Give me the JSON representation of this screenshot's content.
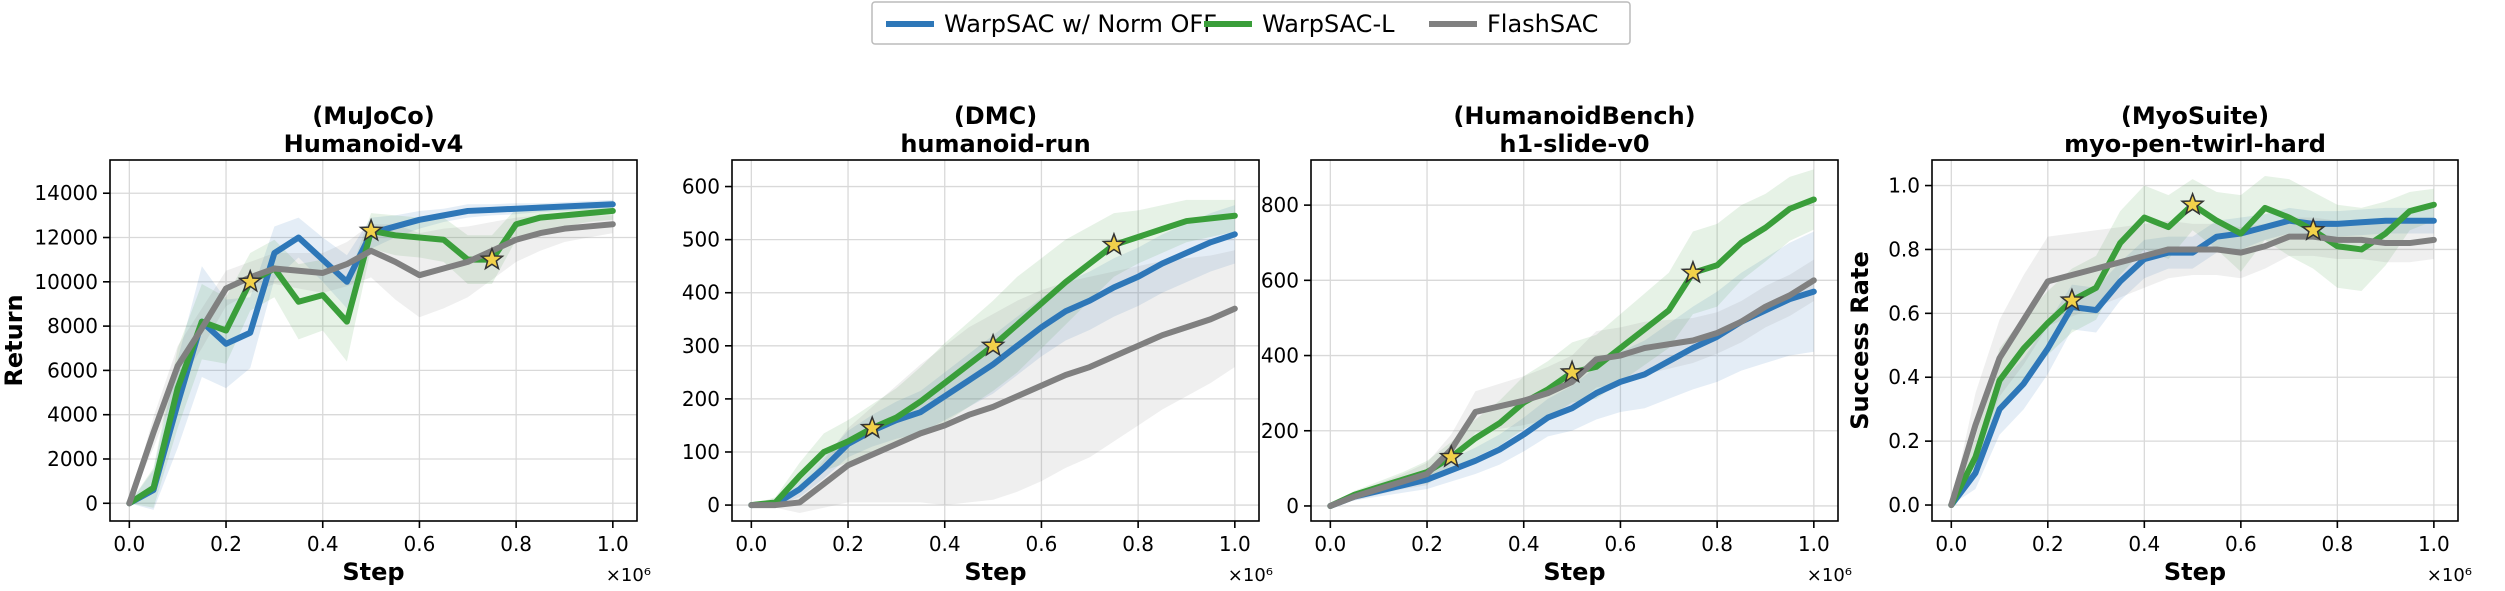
{
  "figure": {
    "series_styles": [
      {
        "name": "WarpSAC w/ Norm OFF",
        "color": "#2e77b8"
      },
      {
        "name": "WarpSAC-L",
        "color": "#3a9e3a"
      },
      {
        "name": "FlashSAC",
        "color": "#808080"
      }
    ],
    "legend_position": "top-center",
    "star_marker_color": "#f2d14a"
  },
  "chart_data": [
    {
      "type": "line",
      "title": "(MuJoCo)",
      "subtitle": "Humanoid-v4",
      "xlabel": "Step",
      "ylabel": "Return",
      "x_multiplier_label": "×10⁶",
      "xlim": [
        -0.04,
        1.05
      ],
      "ylim": [
        -800,
        15500
      ],
      "xticks": [
        0.0,
        0.2,
        0.4,
        0.6,
        0.8,
        1.0
      ],
      "xtick_labels": [
        "0.0",
        "0.2",
        "0.4",
        "0.6",
        "0.8",
        "1.0"
      ],
      "yticks": [
        0,
        2000,
        4000,
        6000,
        8000,
        10000,
        12000,
        14000
      ],
      "ytick_labels": [
        "0",
        "2000",
        "4000",
        "6000",
        "8000",
        "10000",
        "12000",
        "14000"
      ],
      "grid": true,
      "series": [
        {
          "name": "WarpSAC w/ Norm OFF",
          "x": [
            0,
            0.05,
            0.1,
            0.15,
            0.2,
            0.25,
            0.3,
            0.35,
            0.4,
            0.45,
            0.5,
            0.55,
            0.6,
            0.65,
            0.7,
            0.75,
            0.8,
            0.85,
            0.9,
            0.95,
            1.0
          ],
          "y": [
            0,
            600,
            4500,
            8200,
            7200,
            7700,
            11300,
            12000,
            11000,
            10000,
            12200,
            12500,
            12800,
            13000,
            13200,
            13250,
            13300,
            13350,
            13400,
            13450,
            13500
          ],
          "band": [
            0,
            900,
            2000,
            2500,
            2000,
            1600,
            1200,
            900,
            1000,
            1200,
            700,
            500,
            400,
            300,
            300,
            250,
            250,
            200,
            200,
            200,
            200
          ]
        },
        {
          "name": "WarpSAC-L",
          "x": [
            0,
            0.05,
            0.1,
            0.15,
            0.2,
            0.25,
            0.3,
            0.35,
            0.4,
            0.45,
            0.5,
            0.55,
            0.6,
            0.65,
            0.7,
            0.75,
            0.8,
            0.85,
            0.9,
            0.95,
            1.0
          ],
          "y": [
            0,
            700,
            5200,
            8200,
            7800,
            10000,
            10600,
            9100,
            9400,
            8200,
            12300,
            12100,
            12000,
            11900,
            11000,
            11000,
            12600,
            12900,
            13000,
            13100,
            13200
          ],
          "band": [
            0,
            900,
            1800,
            1700,
            1500,
            1300,
            1300,
            1700,
            1600,
            1800,
            800,
            900,
            900,
            1000,
            1100,
            1100,
            700,
            600,
            500,
            400,
            400
          ],
          "stars": [
            0.25,
            0.5,
            0.75
          ]
        },
        {
          "name": "FlashSAC",
          "x": [
            0,
            0.05,
            0.1,
            0.15,
            0.2,
            0.25,
            0.3,
            0.35,
            0.4,
            0.45,
            0.5,
            0.55,
            0.6,
            0.65,
            0.7,
            0.75,
            0.8,
            0.85,
            0.9,
            0.95,
            1.0
          ],
          "y": [
            0,
            3200,
            6200,
            7900,
            9700,
            10200,
            10600,
            10500,
            10400,
            10800,
            11400,
            10900,
            10300,
            10600,
            10900,
            11400,
            11900,
            12200,
            12400,
            12500,
            12600
          ],
          "band": [
            0,
            700,
            900,
            900,
            800,
            700,
            700,
            800,
            900,
            1000,
            1200,
            1700,
            1900,
            1800,
            1600,
            1300,
            1000,
            800,
            600,
            500,
            400
          ]
        }
      ]
    },
    {
      "type": "line",
      "title": "(DMC)",
      "subtitle": "humanoid-run",
      "xlabel": "Step",
      "ylabel": "",
      "x_multiplier_label": "×10⁶",
      "xlim": [
        -0.04,
        1.05
      ],
      "ylim": [
        -30,
        650
      ],
      "xticks": [
        0.0,
        0.2,
        0.4,
        0.6,
        0.8,
        1.0
      ],
      "xtick_labels": [
        "0.0",
        "0.2",
        "0.4",
        "0.6",
        "0.8",
        "1.0"
      ],
      "yticks": [
        0,
        100,
        200,
        300,
        400,
        500,
        600
      ],
      "ytick_labels": [
        "0",
        "100",
        "200",
        "300",
        "400",
        "500",
        "600"
      ],
      "grid": true,
      "series": [
        {
          "name": "WarpSAC w/ Norm OFF",
          "x": [
            0,
            0.05,
            0.1,
            0.15,
            0.2,
            0.25,
            0.3,
            0.35,
            0.4,
            0.45,
            0.5,
            0.55,
            0.6,
            0.65,
            0.7,
            0.75,
            0.8,
            0.85,
            0.9,
            0.95,
            1.0
          ],
          "y": [
            0,
            2,
            30,
            70,
            115,
            140,
            160,
            175,
            205,
            235,
            265,
            300,
            335,
            365,
            385,
            410,
            430,
            455,
            475,
            495,
            510
          ],
          "band": [
            0,
            5,
            15,
            20,
            25,
            30,
            35,
            40,
            45,
            50,
            55,
            55,
            55,
            55,
            55,
            55,
            55,
            55,
            55,
            55,
            55
          ]
        },
        {
          "name": "WarpSAC-L",
          "x": [
            0,
            0.05,
            0.1,
            0.15,
            0.2,
            0.25,
            0.3,
            0.35,
            0.4,
            0.45,
            0.5,
            0.55,
            0.6,
            0.65,
            0.7,
            0.75,
            0.8,
            0.85,
            0.9,
            0.95,
            1.0
          ],
          "y": [
            0,
            5,
            55,
            100,
            120,
            145,
            165,
            195,
            230,
            265,
            300,
            340,
            380,
            420,
            455,
            490,
            505,
            520,
            535,
            540,
            545
          ],
          "band": [
            0,
            10,
            25,
            35,
            40,
            45,
            55,
            65,
            75,
            80,
            85,
            90,
            85,
            80,
            70,
            60,
            50,
            45,
            40,
            35,
            30
          ],
          "stars": [
            0.25,
            0.5,
            0.75
          ]
        },
        {
          "name": "FlashSAC",
          "x": [
            0,
            0.05,
            0.1,
            0.15,
            0.2,
            0.25,
            0.3,
            0.35,
            0.4,
            0.45,
            0.5,
            0.55,
            0.6,
            0.65,
            0.7,
            0.75,
            0.8,
            0.85,
            0.9,
            0.95,
            1.0
          ],
          "y": [
            0,
            0,
            5,
            40,
            75,
            95,
            115,
            135,
            150,
            170,
            185,
            205,
            225,
            245,
            260,
            280,
            300,
            320,
            335,
            350,
            370
          ],
          "band": [
            0,
            5,
            20,
            45,
            70,
            90,
            110,
            130,
            150,
            165,
            175,
            180,
            180,
            175,
            170,
            160,
            150,
            140,
            130,
            120,
            110
          ]
        }
      ]
    },
    {
      "type": "line",
      "title": "(HumanoidBench)",
      "subtitle": "h1-slide-v0",
      "xlabel": "Step",
      "ylabel": "",
      "x_multiplier_label": "×10⁶",
      "xlim": [
        -0.04,
        1.05
      ],
      "ylim": [
        -40,
        920
      ],
      "xticks": [
        0.0,
        0.2,
        0.4,
        0.6,
        0.8,
        1.0
      ],
      "xtick_labels": [
        "0.0",
        "0.2",
        "0.4",
        "0.6",
        "0.8",
        "1.0"
      ],
      "yticks": [
        0,
        200,
        400,
        600,
        800
      ],
      "ytick_labels": [
        "0",
        "200",
        "400",
        "600",
        "800"
      ],
      "grid": true,
      "series": [
        {
          "name": "WarpSAC w/ Norm OFF",
          "x": [
            0,
            0.05,
            0.1,
            0.15,
            0.2,
            0.25,
            0.3,
            0.35,
            0.4,
            0.45,
            0.5,
            0.55,
            0.6,
            0.65,
            0.7,
            0.75,
            0.8,
            0.85,
            0.9,
            0.95,
            1.0
          ],
          "y": [
            0,
            25,
            40,
            55,
            70,
            95,
            120,
            150,
            190,
            235,
            260,
            300,
            330,
            350,
            385,
            420,
            450,
            490,
            520,
            550,
            570
          ],
          "band": [
            0,
            10,
            15,
            20,
            25,
            30,
            35,
            40,
            45,
            50,
            60,
            70,
            80,
            90,
            100,
            110,
            120,
            130,
            140,
            150,
            160
          ]
        },
        {
          "name": "WarpSAC-L",
          "x": [
            0,
            0.05,
            0.1,
            0.15,
            0.2,
            0.25,
            0.3,
            0.35,
            0.4,
            0.45,
            0.5,
            0.55,
            0.6,
            0.65,
            0.7,
            0.75,
            0.8,
            0.85,
            0.9,
            0.95,
            1.0
          ],
          "y": [
            0,
            30,
            50,
            70,
            90,
            130,
            180,
            220,
            275,
            310,
            355,
            370,
            420,
            470,
            520,
            620,
            640,
            700,
            740,
            790,
            815
          ],
          "band": [
            0,
            10,
            15,
            20,
            30,
            40,
            50,
            60,
            70,
            75,
            80,
            85,
            90,
            95,
            100,
            110,
            110,
            100,
            90,
            85,
            80
          ],
          "stars": [
            0.25,
            0.5,
            0.75
          ]
        },
        {
          "name": "FlashSAC",
          "x": [
            0,
            0.05,
            0.1,
            0.15,
            0.2,
            0.25,
            0.3,
            0.35,
            0.4,
            0.45,
            0.5,
            0.55,
            0.6,
            0.65,
            0.7,
            0.75,
            0.8,
            0.85,
            0.9,
            0.95,
            1.0
          ],
          "y": [
            0,
            25,
            45,
            65,
            85,
            150,
            250,
            265,
            280,
            300,
            330,
            390,
            400,
            420,
            430,
            440,
            460,
            490,
            530,
            560,
            600
          ],
          "band": [
            0,
            10,
            15,
            20,
            30,
            40,
            55,
            60,
            65,
            70,
            70,
            75,
            75,
            70,
            65,
            60,
            55,
            55,
            55,
            55,
            55
          ]
        }
      ]
    },
    {
      "type": "line",
      "title": "(MyoSuite)",
      "subtitle": "myo-pen-twirl-hard",
      "xlabel": "Step",
      "ylabel": "Success Rate",
      "x_multiplier_label": "×10⁶",
      "xlim": [
        -0.04,
        1.05
      ],
      "ylim": [
        -0.05,
        1.08
      ],
      "xticks": [
        0.0,
        0.2,
        0.4,
        0.6,
        0.8,
        1.0
      ],
      "xtick_labels": [
        "0.0",
        "0.2",
        "0.4",
        "0.6",
        "0.8",
        "1.0"
      ],
      "yticks": [
        0.0,
        0.2,
        0.4,
        0.6,
        0.8,
        1.0
      ],
      "ytick_labels": [
        "0.0",
        "0.2",
        "0.4",
        "0.6",
        "0.8",
        "1.0"
      ],
      "grid": true,
      "series": [
        {
          "name": "WarpSAC w/ Norm OFF",
          "x": [
            0,
            0.05,
            0.1,
            0.15,
            0.2,
            0.25,
            0.3,
            0.35,
            0.4,
            0.45,
            0.5,
            0.55,
            0.6,
            0.65,
            0.7,
            0.75,
            0.8,
            0.85,
            0.9,
            0.95,
            1.0
          ],
          "y": [
            0,
            0.1,
            0.3,
            0.38,
            0.49,
            0.62,
            0.61,
            0.7,
            0.77,
            0.79,
            0.79,
            0.84,
            0.85,
            0.87,
            0.89,
            0.88,
            0.88,
            0.885,
            0.89,
            0.89,
            0.89
          ],
          "band": [
            0,
            0.05,
            0.08,
            0.08,
            0.08,
            0.07,
            0.07,
            0.06,
            0.06,
            0.05,
            0.05,
            0.05,
            0.05,
            0.04,
            0.04,
            0.04,
            0.04,
            0.04,
            0.04,
            0.04,
            0.04
          ]
        },
        {
          "name": "WarpSAC-L",
          "x": [
            0,
            0.05,
            0.1,
            0.15,
            0.2,
            0.25,
            0.3,
            0.35,
            0.4,
            0.45,
            0.5,
            0.55,
            0.6,
            0.65,
            0.7,
            0.75,
            0.8,
            0.85,
            0.9,
            0.95,
            1.0
          ],
          "y": [
            0,
            0.15,
            0.39,
            0.49,
            0.57,
            0.64,
            0.68,
            0.82,
            0.9,
            0.87,
            0.94,
            0.89,
            0.85,
            0.93,
            0.9,
            0.86,
            0.81,
            0.8,
            0.85,
            0.92,
            0.94
          ],
          "band": [
            0,
            0.06,
            0.1,
            0.1,
            0.1,
            0.1,
            0.1,
            0.1,
            0.1,
            0.1,
            0.08,
            0.09,
            0.12,
            0.1,
            0.12,
            0.12,
            0.13,
            0.13,
            0.1,
            0.06,
            0.05
          ],
          "stars": [
            0.25,
            0.5,
            0.75
          ]
        },
        {
          "name": "FlashSAC",
          "x": [
            0,
            0.05,
            0.1,
            0.15,
            0.2,
            0.25,
            0.3,
            0.35,
            0.4,
            0.45,
            0.5,
            0.55,
            0.6,
            0.65,
            0.7,
            0.75,
            0.8,
            0.85,
            0.9,
            0.95,
            1.0
          ],
          "y": [
            0,
            0.25,
            0.46,
            0.58,
            0.7,
            0.72,
            0.74,
            0.76,
            0.78,
            0.8,
            0.8,
            0.8,
            0.79,
            0.81,
            0.84,
            0.84,
            0.83,
            0.83,
            0.82,
            0.82,
            0.83
          ],
          "band": [
            0,
            0.1,
            0.12,
            0.14,
            0.14,
            0.13,
            0.12,
            0.11,
            0.1,
            0.09,
            0.08,
            0.08,
            0.08,
            0.07,
            0.06,
            0.06,
            0.06,
            0.06,
            0.06,
            0.06,
            0.06
          ]
        }
      ]
    }
  ]
}
